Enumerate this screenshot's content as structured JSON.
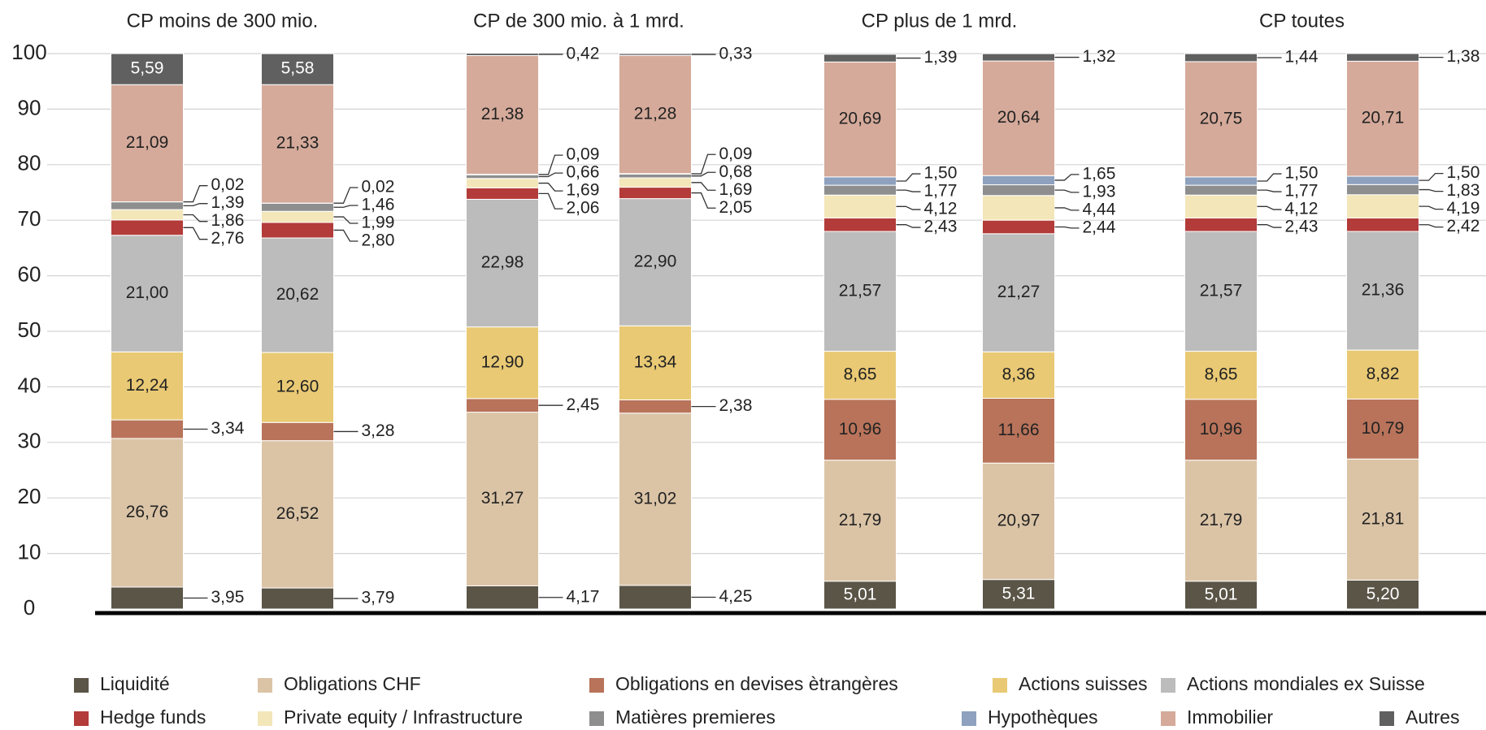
{
  "chart_data": {
    "type": "stacked_bar",
    "groups": [
      "CP moins de 300 mio.",
      "CP de 300 mio. à 1 mrd.",
      "CP plus de 1 mrd.",
      "CP toutes"
    ],
    "categories": [
      null,
      null,
      null,
      null,
      null,
      null,
      null,
      null
    ],
    "ylim": [
      0,
      100
    ],
    "yticks": [
      0,
      10,
      20,
      30,
      40,
      50,
      60,
      70,
      80,
      90,
      100
    ],
    "grid": true,
    "legend": "bottom",
    "series": [
      {
        "name": "Liquidité",
        "color": "#5a5547",
        "values": [
          3.95,
          3.79,
          4.17,
          4.25,
          5.01,
          5.31,
          5.01,
          5.2
        ],
        "value_labels": [
          "3,95",
          "3,79",
          "4,17",
          "4,25",
          "5,01",
          "5,31",
          "5,01",
          "5,20"
        ]
      },
      {
        "name": "Obligations CHF",
        "color": "#dbc4a6",
        "values": [
          26.76,
          26.52,
          31.27,
          31.02,
          21.79,
          20.97,
          21.79,
          21.81
        ],
        "value_labels": [
          "26,76",
          "26,52",
          "31,27",
          "31,02",
          "21,79",
          "20,97",
          "21,79",
          "21,81"
        ]
      },
      {
        "name": "Obligations en devises ètrangères",
        "color": "#b8735a",
        "values": [
          3.34,
          3.28,
          2.45,
          2.38,
          10.96,
          11.66,
          10.96,
          10.79
        ],
        "value_labels": [
          "3,34",
          "3,28",
          "2,45",
          "2,38",
          "10,96",
          "11,66",
          "10,96",
          "10,79"
        ]
      },
      {
        "name": "Actions suisses",
        "color": "#e9c974",
        "values": [
          12.24,
          12.6,
          12.9,
          13.34,
          8.65,
          8.36,
          8.65,
          8.82
        ],
        "value_labels": [
          "12,24",
          "12,60",
          "12,90",
          "13,34",
          "8,65",
          "8,36",
          "8,65",
          "8,82"
        ]
      },
      {
        "name": "Actions mondiales ex Suisse",
        "color": "#bcbcbc",
        "values": [
          21.0,
          20.62,
          22.98,
          22.9,
          21.57,
          21.27,
          21.57,
          21.36
        ],
        "value_labels": [
          "21,00",
          "20,62",
          "22,98",
          "22,90",
          "21,57",
          "21,27",
          "21,57",
          "21,36"
        ]
      },
      {
        "name": "Hedge funds",
        "color": "#b33b39",
        "values": [
          2.76,
          2.8,
          2.06,
          2.05,
          2.43,
          2.44,
          2.43,
          2.42
        ],
        "value_labels": [
          "2,76",
          "2,80",
          "2,06",
          "2,05",
          "2,43",
          "2,44",
          "2,43",
          "2,42"
        ]
      },
      {
        "name": "Private equity / Infrastructure",
        "color": "#f3e6b9",
        "values": [
          1.86,
          1.99,
          1.69,
          1.69,
          4.12,
          4.44,
          4.12,
          4.19
        ],
        "value_labels": [
          "1,86",
          "1,99",
          "1,69",
          "1,69",
          "4,12",
          "4,44",
          "4,12",
          "4,19"
        ]
      },
      {
        "name": "Matières premieres",
        "color": "#8e8e8e",
        "values": [
          1.39,
          1.46,
          0.66,
          0.68,
          1.77,
          1.93,
          1.77,
          1.83
        ],
        "value_labels": [
          "1,39",
          "1,46",
          "0,66",
          "0,68",
          "1,77",
          "1,93",
          "1,77",
          "1,83"
        ]
      },
      {
        "name": "Hypothèques",
        "color": "#8ea1be",
        "values": [
          0.02,
          0.02,
          0.09,
          0.09,
          1.5,
          1.65,
          1.5,
          1.5
        ],
        "value_labels": [
          "0,02",
          "0,02",
          "0,09",
          "0,09",
          "1,50",
          "1,65",
          "1,50",
          "1,50"
        ]
      },
      {
        "name": "Immobilier",
        "color": "#d5aa9a",
        "values": [
          21.09,
          21.33,
          21.38,
          21.28,
          20.69,
          20.64,
          20.75,
          20.71
        ],
        "value_labels": [
          "21,09",
          "21,33",
          "21,38",
          "21,28",
          "20,69",
          "20,64",
          "20,75",
          "20,71"
        ]
      },
      {
        "name": "Autres",
        "color": "#606060",
        "values": [
          5.59,
          5.58,
          0.42,
          0.33,
          1.39,
          1.32,
          1.44,
          1.38
        ],
        "value_labels": [
          "5,59",
          "5,58",
          "0,42",
          "0,33",
          "1,39",
          "1,32",
          "1,44",
          "1,38"
        ]
      }
    ]
  }
}
